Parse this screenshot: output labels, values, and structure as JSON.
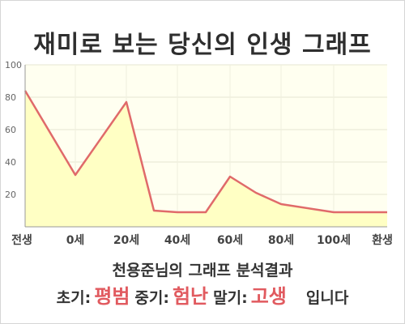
{
  "title": "재미로 보는 당신의 인생 그래프",
  "chart_data": {
    "type": "area",
    "x_tick_labels": [
      "전생",
      "0세",
      "20세",
      "40세",
      "60세",
      "80세",
      "100세",
      "환생"
    ],
    "y_ticks": [
      20,
      40,
      60,
      80,
      100
    ],
    "ylim": [
      0,
      100
    ],
    "grid": true,
    "fill_color": "#ffffc4",
    "line_color": "#e06a6a",
    "plot_bg": "#fffff0",
    "series": [
      {
        "values": [
          {
            "x": "전생",
            "y": 84
          },
          {
            "x": "0세",
            "y": 32
          },
          {
            "x": "20세",
            "y": 77
          },
          {
            "x": "30세",
            "y": 10
          },
          {
            "x": "40세",
            "y": 9
          },
          {
            "x": "50세",
            "y": 9
          },
          {
            "x": "60세",
            "y": 31
          },
          {
            "x": "70세",
            "y": 21
          },
          {
            "x": "80세",
            "y": 14
          },
          {
            "x": "100세",
            "y": 9
          },
          {
            "x": "환생",
            "y": 9
          }
        ]
      }
    ]
  },
  "subtitle": "천용준님의 그래프 분석결과",
  "summary": {
    "early_label": "초기:",
    "early_value": "평범",
    "mid_label": "중기:",
    "mid_value": "험난",
    "late_label": "말기:",
    "late_value": "고생",
    "ending": "입니다"
  }
}
